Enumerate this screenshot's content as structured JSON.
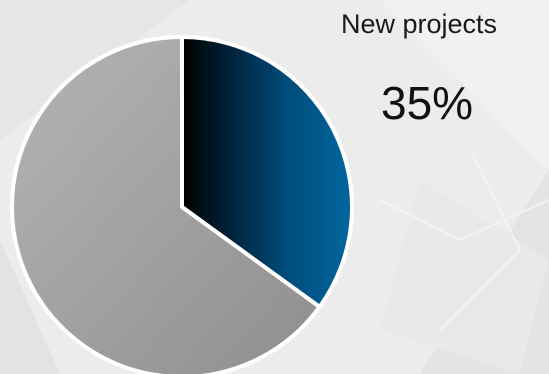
{
  "chart_data": {
    "type": "pie",
    "title": "",
    "slices": [
      {
        "label": "New projects",
        "value": 35,
        "color": "#005a8e"
      },
      {
        "label": "",
        "value": 65,
        "color": "#a3a3a3"
      }
    ],
    "highlight": {
      "label": "New projects",
      "value_text": "35%"
    },
    "legend": "none",
    "start_angle": "12 o'clock, clockwise"
  }
}
